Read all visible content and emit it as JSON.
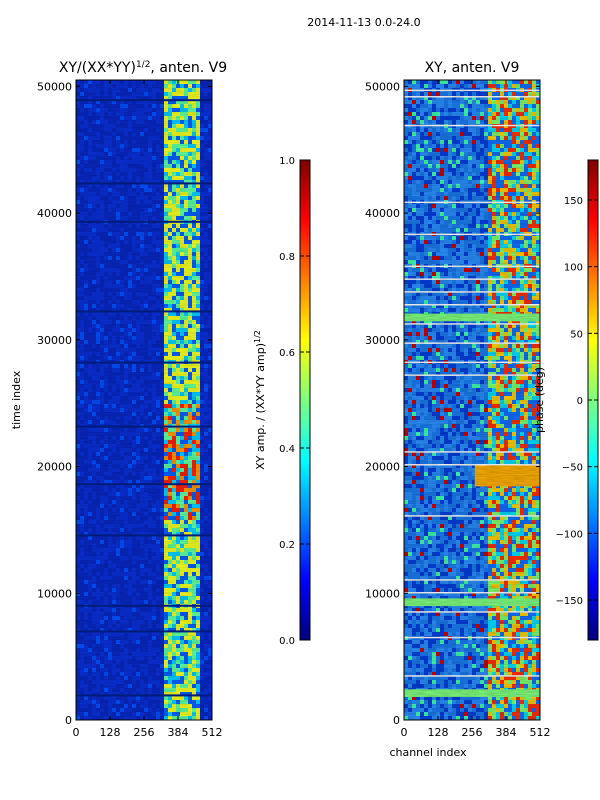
{
  "suptitle": "2014-11-13 0.0-24.0",
  "colormap": {
    "name": "jet",
    "stops": [
      "#00007f",
      "#0000ff",
      "#007fff",
      "#00ffff",
      "#7fff7f",
      "#ffff00",
      "#ff7f00",
      "#ff0000",
      "#7f0000"
    ]
  },
  "chart_data": [
    {
      "type": "heatmap",
      "title_base": "XY/(XX*YY)",
      "title_exp": "1/2",
      "title_tail": ", anten. V9",
      "xlabel": "",
      "ylabel": "time index",
      "xlim": [
        0,
        512
      ],
      "ylim": [
        0,
        50500
      ],
      "xticks": [
        0,
        128,
        256,
        384,
        512
      ],
      "yticks": [
        0,
        10000,
        20000,
        30000,
        40000,
        50000
      ],
      "colorbar": {
        "label_base": "XY amp. / (XX*YY amp)",
        "label_exp": "1/2",
        "range": [
          0.0,
          1.0
        ],
        "ticks": [
          "0.0",
          "0.2",
          "0.4",
          "0.6",
          "0.8",
          "1.0"
        ]
      }
    },
    {
      "type": "heatmap",
      "title_base": "XY, anten. V9",
      "title_exp": "",
      "title_tail": "",
      "xlabel": "channel index",
      "ylabel": "",
      "xlim": [
        0,
        512
      ],
      "ylim": [
        0,
        50500
      ],
      "xticks": [
        0,
        128,
        256,
        384,
        512
      ],
      "yticks": [
        0,
        10000,
        20000,
        30000,
        40000,
        50000
      ],
      "colorbar": {
        "label_base": "phase (deg)",
        "label_exp": "",
        "range": [
          -180,
          180
        ],
        "ticks": [
          "−150",
          "−100",
          "−50",
          "0",
          "50",
          "100",
          "150"
        ]
      }
    }
  ]
}
